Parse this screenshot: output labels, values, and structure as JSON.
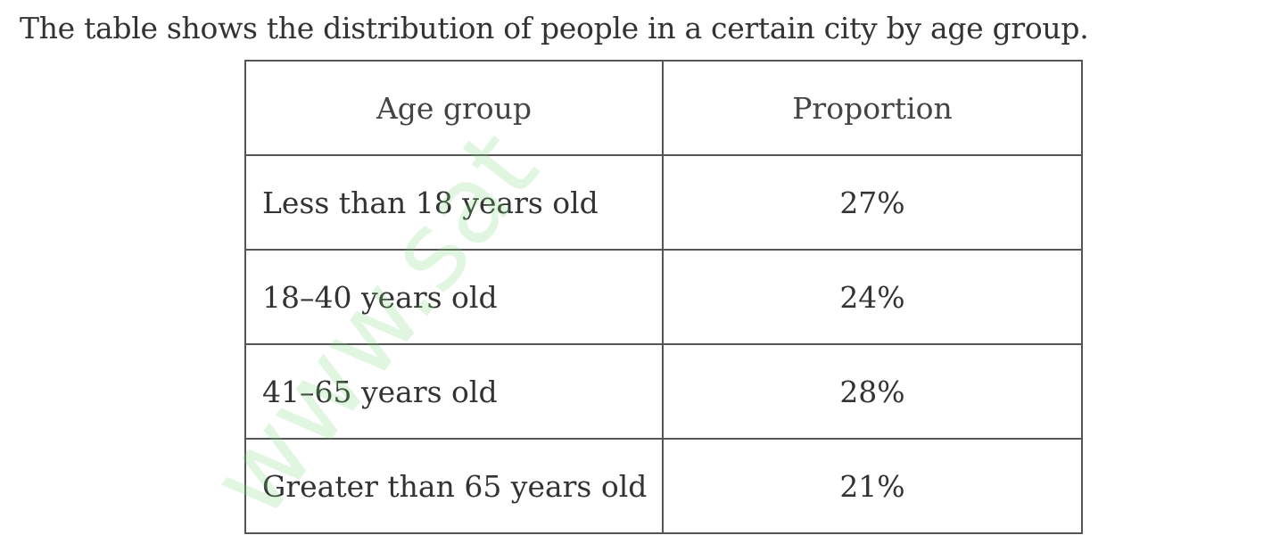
{
  "intro": "The table shows the distribution of people in a certain city by age group.",
  "watermark": "www.sat",
  "table": {
    "header": [
      "Age group",
      "Proportion"
    ],
    "rows": [
      [
        "Less than 18 years old",
        "27%"
      ],
      [
        "18–40 years old",
        "24%"
      ],
      [
        "41–65 years old",
        "28%"
      ],
      [
        "Greater than 65 years old",
        "21%"
      ]
    ]
  }
}
